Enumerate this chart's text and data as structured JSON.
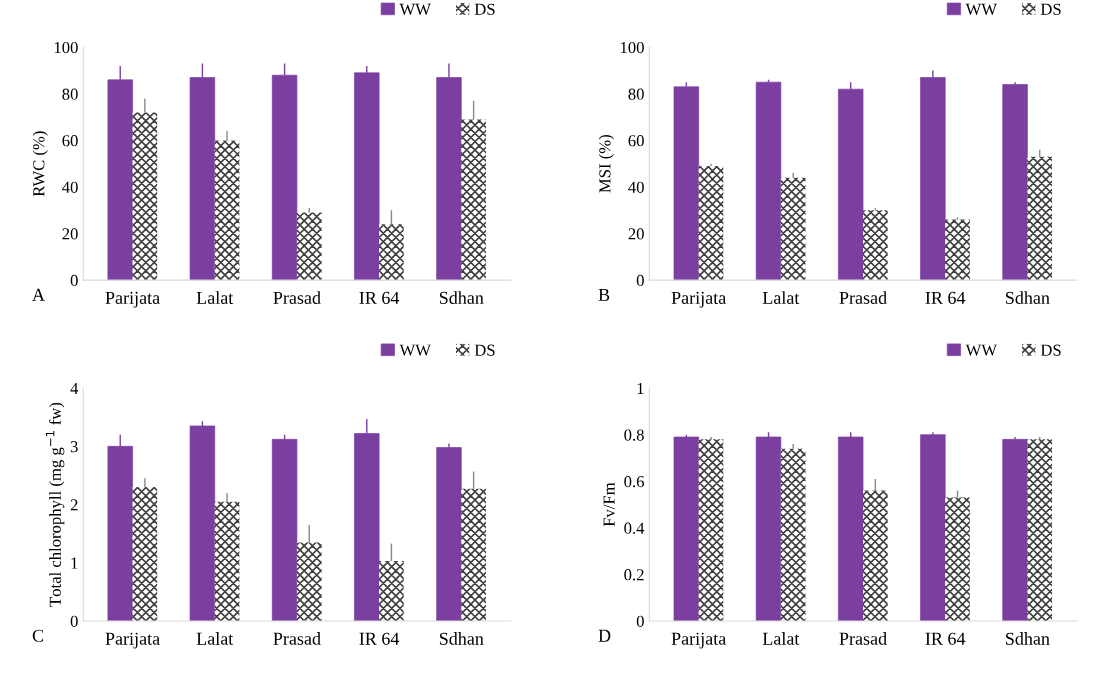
{
  "chart_data": [
    {
      "type": "bar",
      "ylabel": "RWC (%)",
      "categories": [
        "Parijata",
        "Lalat",
        "Prasad",
        "IR 64",
        "Sdhan"
      ],
      "ylim": [
        0,
        100
      ],
      "yticks": [
        0,
        20,
        40,
        60,
        80,
        100
      ],
      "legend": "top right",
      "grid": false,
      "annotations": [
        "A"
      ],
      "series": [
        {
          "name": "WW",
          "color": "#7b3fa0",
          "values": [
            86,
            87,
            88,
            89,
            87
          ],
          "errors": [
            6,
            6,
            5,
            3,
            6
          ]
        },
        {
          "name": "DS",
          "color": "#404040",
          "values": [
            72,
            60,
            29,
            24,
            69
          ],
          "errors": [
            6,
            4,
            2,
            6,
            8
          ]
        }
      ]
    },
    {
      "type": "bar",
      "ylabel": "MSI (%)",
      "categories": [
        "Parijata",
        "Lalat",
        "Prasad",
        "IR 64",
        "Sdhan"
      ],
      "ylim": [
        0,
        100
      ],
      "yticks": [
        0,
        20,
        40,
        60,
        80,
        100
      ],
      "legend": "top right",
      "grid": false,
      "annotations": [
        "B"
      ],
      "series": [
        {
          "name": "WW",
          "color": "#7b3fa0",
          "values": [
            83,
            85,
            82,
            87,
            84
          ],
          "errors": [
            2,
            1,
            3,
            3,
            1
          ]
        },
        {
          "name": "DS",
          "color": "#404040",
          "values": [
            49,
            44,
            30,
            26,
            53
          ],
          "errors": [
            1,
            2,
            1,
            1,
            3
          ]
        }
      ]
    },
    {
      "type": "bar",
      "ylabel": "Total chlorophyll (mg g$^{−1}$ fw)",
      "categories": [
        "Parijata",
        "Lalat",
        "Prasad",
        "IR 64",
        "Sdhan"
      ],
      "ylim": [
        0,
        4
      ],
      "yticks": [
        0,
        1,
        2,
        3,
        4
      ],
      "legend": "top right",
      "grid": false,
      "annotations": [
        "C"
      ],
      "series": [
        {
          "name": "WW",
          "color": "#7b3fa0",
          "values": [
            3.0,
            3.35,
            3.12,
            3.22,
            2.98
          ],
          "errors": [
            0.2,
            0.08,
            0.08,
            0.25,
            0.07
          ]
        },
        {
          "name": "DS",
          "color": "#404040",
          "values": [
            2.3,
            2.05,
            1.35,
            1.03,
            2.27
          ],
          "errors": [
            0.15,
            0.15,
            0.3,
            0.3,
            0.3
          ]
        }
      ]
    },
    {
      "type": "bar",
      "ylabel": "Fv/Fm",
      "categories": [
        "Parijata",
        "Lalat",
        "Prasad",
        "IR 64",
        "Sdhan"
      ],
      "ylim": [
        0,
        1
      ],
      "yticks": [
        0,
        0.2,
        0.4,
        0.6,
        0.8,
        1
      ],
      "legend": "top right",
      "grid": false,
      "annotations": [
        "D"
      ],
      "series": [
        {
          "name": "WW",
          "color": "#7b3fa0",
          "values": [
            0.79,
            0.79,
            0.79,
            0.8,
            0.78
          ],
          "errors": [
            0.01,
            0.02,
            0.02,
            0.01,
            0.01
          ]
        },
        {
          "name": "DS",
          "color": "#404040",
          "values": [
            0.78,
            0.74,
            0.56,
            0.53,
            0.78
          ],
          "errors": [
            0.01,
            0.02,
            0.05,
            0.03,
            0.01
          ]
        }
      ]
    }
  ]
}
